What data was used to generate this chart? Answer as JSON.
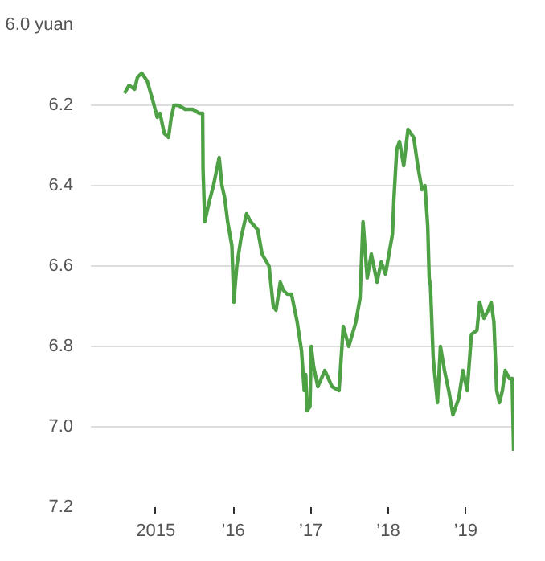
{
  "chart_data": {
    "type": "line",
    "x": [
      "2014-08-07",
      "2014-08-28",
      "2014-09-23",
      "2014-10-07",
      "2014-10-27",
      "2014-11-22",
      "2014-12-19",
      "2015-01-08",
      "2015-01-21",
      "2015-02-10",
      "2015-03-02",
      "2015-03-15",
      "2015-03-28",
      "2015-04-17",
      "2015-05-20",
      "2015-06-23",
      "2015-07-26",
      "2015-08-10",
      "2015-08-12",
      "2015-08-20",
      "2015-09-10",
      "2015-09-30",
      "2015-10-27",
      "2015-11-09",
      "2015-11-22",
      "2015-12-06",
      "2015-12-26",
      "2016-01-04",
      "2016-01-18",
      "2016-02-07",
      "2016-03-04",
      "2016-03-24",
      "2016-04-26",
      "2016-05-16",
      "2016-06-18",
      "2016-07-08",
      "2016-07-21",
      "2016-08-10",
      "2016-08-24",
      "2016-09-12",
      "2016-10-02",
      "2016-10-29",
      "2016-11-18",
      "2016-12-01",
      "2016-12-08",
      "2016-12-14",
      "2016-12-28",
      "2017-01-03",
      "2017-01-14",
      "2017-02-03",
      "2017-03-08",
      "2017-04-11",
      "2017-05-14",
      "2017-06-03",
      "2017-06-29",
      "2017-08-01",
      "2017-08-21",
      "2017-09-04",
      "2017-09-24",
      "2017-10-13",
      "2017-11-09",
      "2017-11-29",
      "2017-12-19",
      "2018-01-21",
      "2018-01-28",
      "2018-02-10",
      "2018-02-23",
      "2018-03-15",
      "2018-04-04",
      "2018-05-01",
      "2018-05-20",
      "2018-06-09",
      "2018-06-23",
      "2018-07-06",
      "2018-07-13",
      "2018-07-19",
      "2018-08-01",
      "2018-08-21",
      "2018-09-04",
      "2018-09-23",
      "2018-10-13",
      "2018-11-02",
      "2018-11-29",
      "2018-12-19",
      "2019-01-08",
      "2019-01-28",
      "2019-02-23",
      "2019-03-08",
      "2019-03-28",
      "2019-04-17",
      "2019-05-01",
      "2019-05-14",
      "2019-05-27",
      "2019-06-09",
      "2019-06-23",
      "2019-07-06",
      "2019-07-26",
      "2019-08-08",
      "2019-08-15"
    ],
    "series": [
      {
        "color": "#4ea145",
        "values": [
          6.17,
          6.15,
          6.16,
          6.13,
          6.12,
          6.14,
          6.19,
          6.23,
          6.22,
          6.27,
          6.28,
          6.23,
          6.2,
          6.2,
          6.21,
          6.21,
          6.22,
          6.22,
          6.36,
          6.49,
          6.44,
          6.4,
          6.33,
          6.4,
          6.43,
          6.49,
          6.55,
          6.69,
          6.6,
          6.53,
          6.47,
          6.49,
          6.51,
          6.57,
          6.6,
          6.7,
          6.71,
          6.64,
          6.66,
          6.67,
          6.67,
          6.74,
          6.81,
          6.91,
          6.87,
          6.96,
          6.95,
          6.8,
          6.85,
          6.9,
          6.86,
          6.9,
          6.91,
          6.75,
          6.8,
          6.74,
          6.68,
          6.49,
          6.63,
          6.57,
          6.64,
          6.59,
          6.62,
          6.52,
          6.43,
          6.31,
          6.29,
          6.35,
          6.26,
          6.28,
          6.35,
          6.41,
          6.4,
          6.5,
          6.63,
          6.65,
          6.83,
          6.94,
          6.8,
          6.86,
          6.91,
          6.97,
          6.93,
          6.86,
          6.91,
          6.77,
          6.76,
          6.69,
          6.73,
          6.71,
          6.69,
          6.74,
          6.91,
          6.94,
          6.91,
          6.86,
          6.88,
          6.88,
          7.06
        ]
      }
    ],
    "xlim": [
      "2014-03-01",
      "2019-08-15"
    ],
    "xticks": [
      {
        "value": "2015-01-01",
        "label": "2015"
      },
      {
        "value": "2016-01-01",
        "label": "’16"
      },
      {
        "value": "2017-01-01",
        "label": "’17"
      },
      {
        "value": "2018-01-01",
        "label": "’18"
      },
      {
        "value": "2019-01-01",
        "label": "’19"
      }
    ],
    "ylim": [
      7.2,
      6.0
    ],
    "yticks": [
      {
        "value": 6.0,
        "label": "6.0 yuan"
      },
      6.2,
      6.4,
      6.6,
      6.8,
      {
        "value": 7.0,
        "label": "7.0"
      },
      7.2
    ],
    "grid": "y",
    "marker": "none",
    "line_style": "solid"
  }
}
